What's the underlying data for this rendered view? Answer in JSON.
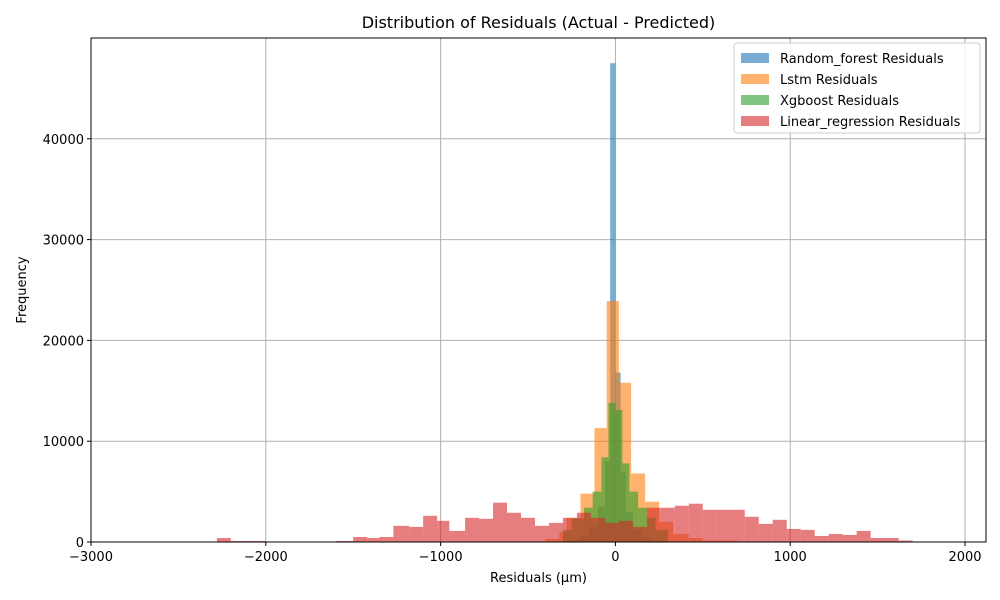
{
  "chart_data": {
    "type": "bar",
    "subtype": "histogram",
    "title": "Distribution of Residuals (Actual - Predicted)",
    "xlabel": "Residuals (µm)",
    "ylabel": "Frequency",
    "xlim": [
      -3000,
      2120
    ],
    "ylim": [
      0,
      50000
    ],
    "xticks": [
      -3000,
      -2000,
      -1000,
      0,
      1000,
      2000
    ],
    "xtick_labels": [
      "−3000",
      "−2000",
      "−1000",
      "0",
      "1000",
      "2000"
    ],
    "yticks": [
      0,
      10000,
      20000,
      30000,
      40000
    ],
    "ytick_labels": [
      "0",
      "10000",
      "20000",
      "30000",
      "40000"
    ],
    "grid": true,
    "legend_position": "top-right",
    "series": [
      {
        "name": "Random_forest Residuals",
        "color": "#1f77b4",
        "alpha": 0.6,
        "bins": [
          {
            "x0": -250,
            "x1": -200,
            "y": 200
          },
          {
            "x0": -200,
            "x1": -150,
            "y": 600
          },
          {
            "x0": -150,
            "x1": -100,
            "y": 1500
          },
          {
            "x0": -100,
            "x1": -60,
            "y": 3500
          },
          {
            "x0": -60,
            "x1": -30,
            "y": 8000
          },
          {
            "x0": -30,
            "x1": 0,
            "y": 47500
          },
          {
            "x0": 0,
            "x1": 30,
            "y": 16800
          },
          {
            "x0": 30,
            "x1": 60,
            "y": 7000
          },
          {
            "x0": 60,
            "x1": 100,
            "y": 3000
          },
          {
            "x0": 100,
            "x1": 150,
            "y": 1200
          },
          {
            "x0": 150,
            "x1": 200,
            "y": 500
          },
          {
            "x0": 200,
            "x1": 250,
            "y": 200
          }
        ]
      },
      {
        "name": "Lstm Residuals",
        "color": "#ff7f0e",
        "alpha": 0.6,
        "bins": [
          {
            "x0": -400,
            "x1": -320,
            "y": 300
          },
          {
            "x0": -320,
            "x1": -280,
            "y": 1000
          },
          {
            "x0": -280,
            "x1": -200,
            "y": 2400
          },
          {
            "x0": -200,
            "x1": -120,
            "y": 4800
          },
          {
            "x0": -120,
            "x1": -50,
            "y": 11300
          },
          {
            "x0": -50,
            "x1": 20,
            "y": 23900
          },
          {
            "x0": 20,
            "x1": 90,
            "y": 15800
          },
          {
            "x0": 90,
            "x1": 170,
            "y": 6800
          },
          {
            "x0": 170,
            "x1": 250,
            "y": 4000
          },
          {
            "x0": 250,
            "x1": 330,
            "y": 2000
          },
          {
            "x0": 330,
            "x1": 420,
            "y": 800
          },
          {
            "x0": 420,
            "x1": 500,
            "y": 400
          },
          {
            "x0": 500,
            "x1": 700,
            "y": 150
          }
        ]
      },
      {
        "name": "Xgboost Residuals",
        "color": "#2ca02c",
        "alpha": 0.6,
        "bins": [
          {
            "x0": -300,
            "x1": -250,
            "y": 1200
          },
          {
            "x0": -250,
            "x1": -180,
            "y": 2300
          },
          {
            "x0": -180,
            "x1": -130,
            "y": 3400
          },
          {
            "x0": -130,
            "x1": -80,
            "y": 5000
          },
          {
            "x0": -80,
            "x1": -40,
            "y": 8400
          },
          {
            "x0": -40,
            "x1": 0,
            "y": 13800
          },
          {
            "x0": 0,
            "x1": 40,
            "y": 13100
          },
          {
            "x0": 40,
            "x1": 80,
            "y": 7800
          },
          {
            "x0": 80,
            "x1": 130,
            "y": 5000
          },
          {
            "x0": 130,
            "x1": 180,
            "y": 3400
          },
          {
            "x0": 180,
            "x1": 230,
            "y": 2400
          },
          {
            "x0": 230,
            "x1": 300,
            "y": 1200
          }
        ]
      },
      {
        "name": "Linear_regression Residuals",
        "color": "#d62728",
        "alpha": 0.6,
        "bins": [
          {
            "x0": -2280,
            "x1": -2200,
            "y": 400
          },
          {
            "x0": -2200,
            "x1": -2000,
            "y": 100
          },
          {
            "x0": -1600,
            "x1": -1500,
            "y": 100
          },
          {
            "x0": -1500,
            "x1": -1420,
            "y": 500
          },
          {
            "x0": -1420,
            "x1": -1350,
            "y": 400
          },
          {
            "x0": -1350,
            "x1": -1270,
            "y": 500
          },
          {
            "x0": -1270,
            "x1": -1180,
            "y": 1600
          },
          {
            "x0": -1180,
            "x1": -1100,
            "y": 1500
          },
          {
            "x0": -1100,
            "x1": -1020,
            "y": 2600
          },
          {
            "x0": -1020,
            "x1": -950,
            "y": 2100
          },
          {
            "x0": -950,
            "x1": -860,
            "y": 1100
          },
          {
            "x0": -860,
            "x1": -780,
            "y": 2400
          },
          {
            "x0": -780,
            "x1": -700,
            "y": 2300
          },
          {
            "x0": -700,
            "x1": -620,
            "y": 3900
          },
          {
            "x0": -620,
            "x1": -540,
            "y": 2900
          },
          {
            "x0": -540,
            "x1": -460,
            "y": 2400
          },
          {
            "x0": -460,
            "x1": -380,
            "y": 1600
          },
          {
            "x0": -380,
            "x1": -300,
            "y": 1900
          },
          {
            "x0": -300,
            "x1": -220,
            "y": 2400
          },
          {
            "x0": -220,
            "x1": -140,
            "y": 2900
          },
          {
            "x0": -140,
            "x1": -60,
            "y": 2400
          },
          {
            "x0": -60,
            "x1": 20,
            "y": 1900
          },
          {
            "x0": 20,
            "x1": 100,
            "y": 2100
          },
          {
            "x0": 100,
            "x1": 180,
            "y": 1500
          },
          {
            "x0": 180,
            "x1": 260,
            "y": 3400
          },
          {
            "x0": 260,
            "x1": 340,
            "y": 3400
          },
          {
            "x0": 340,
            "x1": 420,
            "y": 3600
          },
          {
            "x0": 420,
            "x1": 500,
            "y": 3800
          },
          {
            "x0": 500,
            "x1": 580,
            "y": 3200
          },
          {
            "x0": 580,
            "x1": 660,
            "y": 3200
          },
          {
            "x0": 660,
            "x1": 740,
            "y": 3200
          },
          {
            "x0": 740,
            "x1": 820,
            "y": 2500
          },
          {
            "x0": 820,
            "x1": 900,
            "y": 1800
          },
          {
            "x0": 900,
            "x1": 980,
            "y": 2200
          },
          {
            "x0": 980,
            "x1": 1060,
            "y": 1300
          },
          {
            "x0": 1060,
            "x1": 1140,
            "y": 1200
          },
          {
            "x0": 1140,
            "x1": 1220,
            "y": 600
          },
          {
            "x0": 1220,
            "x1": 1300,
            "y": 800
          },
          {
            "x0": 1300,
            "x1": 1380,
            "y": 700
          },
          {
            "x0": 1380,
            "x1": 1460,
            "y": 1100
          },
          {
            "x0": 1460,
            "x1": 1540,
            "y": 400
          },
          {
            "x0": 1540,
            "x1": 1620,
            "y": 400
          },
          {
            "x0": 1620,
            "x1": 1700,
            "y": 150
          }
        ]
      }
    ]
  }
}
